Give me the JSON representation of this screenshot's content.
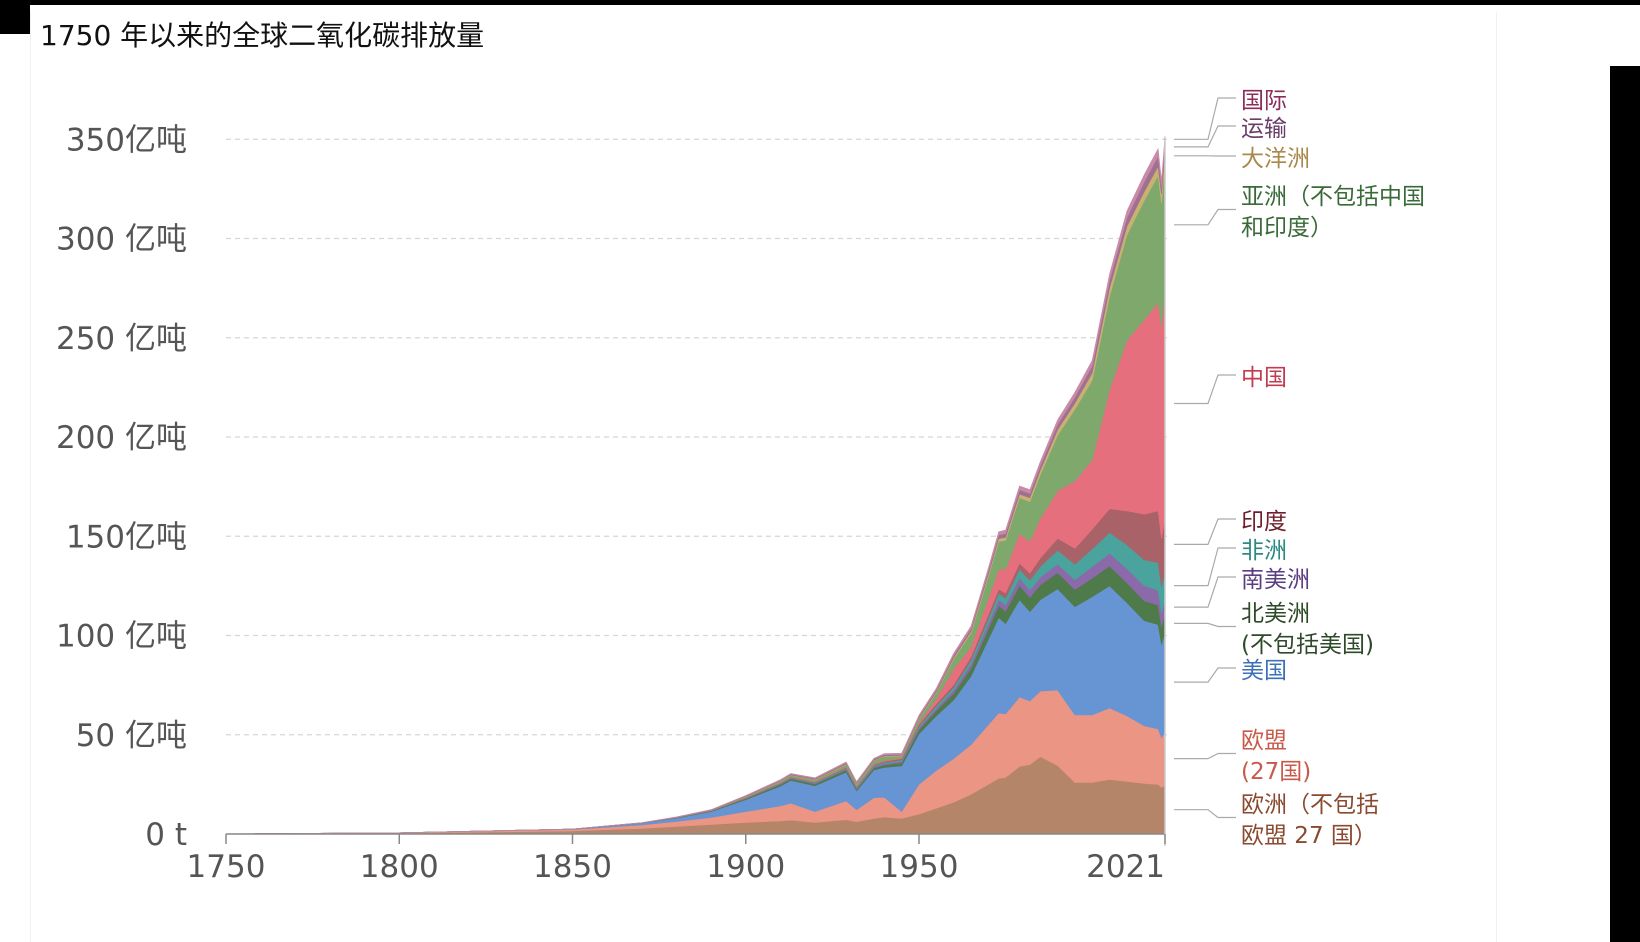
{
  "title": "1750 年以来的全球二氧化碳排放量",
  "colors": {
    "grid": "#d6d6d6",
    "axis": "#888888",
    "connector": "#aaaaaa",
    "tick_text": "#555555"
  },
  "chart_data": {
    "type": "area",
    "stacked": true,
    "title": "1750 年以来的全球二氧化碳排放量",
    "xlim": [
      1750,
      2021
    ],
    "ylim": [
      0,
      37
    ],
    "y_unit": "亿吨 (x10)",
    "x_ticks": [
      {
        "value": 1750,
        "label": "1750"
      },
      {
        "value": 1800,
        "label": "1800"
      },
      {
        "value": 1850,
        "label": "1850"
      },
      {
        "value": 1900,
        "label": "1900"
      },
      {
        "value": 1950,
        "label": "1950"
      },
      {
        "value": 2021,
        "label": "2021"
      }
    ],
    "y_ticks": [
      {
        "value": 0,
        "label": "0 t"
      },
      {
        "value": 5,
        "label": "50 亿吨"
      },
      {
        "value": 10,
        "label": "100 亿吨"
      },
      {
        "value": 15,
        "label": "150亿吨"
      },
      {
        "value": 20,
        "label": "200 亿吨"
      },
      {
        "value": 25,
        "label": "250 亿吨"
      },
      {
        "value": 30,
        "label": "300 亿吨"
      },
      {
        "value": 35,
        "label": "350亿吨"
      }
    ],
    "grid": "y-dashed",
    "legend": "right-inline",
    "x": [
      1750,
      1800,
      1850,
      1870,
      1880,
      1890,
      1900,
      1910,
      1913,
      1920,
      1929,
      1932,
      1937,
      1940,
      1945,
      1950,
      1955,
      1960,
      1965,
      1970,
      1973,
      1975,
      1979,
      1982,
      1985,
      1990,
      1995,
      2000,
      2005,
      2010,
      2015,
      2019,
      2020,
      2021
    ],
    "series": [
      {
        "name": "欧洲（不包括欧盟 27 国）",
        "label_lines": [
          "欧洲（不包括",
          "欧盟 27 国）"
        ],
        "color": "#b5856a",
        "text_color": "#8a4a30",
        "values": [
          0.01,
          0.04,
          0.15,
          0.28,
          0.38,
          0.48,
          0.58,
          0.66,
          0.7,
          0.58,
          0.72,
          0.62,
          0.78,
          0.85,
          0.78,
          1.0,
          1.3,
          1.6,
          2.0,
          2.5,
          2.8,
          2.85,
          3.4,
          3.5,
          3.9,
          3.45,
          2.6,
          2.6,
          2.75,
          2.65,
          2.55,
          2.5,
          2.35,
          2.45
        ]
      },
      {
        "name": "欧盟(27国)",
        "label_lines": [
          "欧盟",
          "(27国)"
        ],
        "color": "#eb9584",
        "text_color": "#c85a4a",
        "values": [
          0.0,
          0.02,
          0.08,
          0.18,
          0.25,
          0.35,
          0.55,
          0.75,
          0.85,
          0.55,
          0.95,
          0.6,
          1.05,
          1.0,
          0.35,
          1.5,
          1.9,
          2.2,
          2.5,
          3.0,
          3.3,
          3.2,
          3.5,
          3.2,
          3.3,
          3.8,
          3.4,
          3.4,
          3.6,
          3.3,
          2.9,
          2.8,
          2.5,
          2.7
        ]
      },
      {
        "name": "美国",
        "label_lines": [
          "美国"
        ],
        "color": "#6794d2",
        "text_color": "#3e70b8",
        "values": [
          0.0,
          0.0,
          0.02,
          0.09,
          0.17,
          0.3,
          0.6,
          1.0,
          1.15,
          1.3,
          1.45,
          0.95,
          1.4,
          1.5,
          2.3,
          2.55,
          2.75,
          2.95,
          3.45,
          4.3,
          4.8,
          4.55,
          4.9,
          4.5,
          4.6,
          5.1,
          5.45,
          5.95,
          6.15,
          5.7,
          5.3,
          5.25,
          4.7,
          5.0
        ]
      },
      {
        "name": "北美洲(不包括美国)",
        "label_lines": [
          "北美洲",
          "(不包括美国)"
        ],
        "color": "#4f7a4a",
        "text_color": "#2e4a28",
        "values": [
          0.0,
          0.0,
          0.0,
          0.01,
          0.02,
          0.03,
          0.05,
          0.08,
          0.08,
          0.09,
          0.1,
          0.08,
          0.1,
          0.12,
          0.15,
          0.2,
          0.26,
          0.32,
          0.4,
          0.52,
          0.6,
          0.62,
          0.72,
          0.72,
          0.75,
          0.82,
          0.86,
          0.94,
          1.0,
          1.0,
          1.0,
          0.98,
          0.9,
          0.92
        ]
      },
      {
        "name": "南美洲",
        "label_lines": [
          "南美洲"
        ],
        "color": "#8a6aa8",
        "text_color": "#5a3d82",
        "values": [
          0.0,
          0.0,
          0.0,
          0.0,
          0.0,
          0.01,
          0.02,
          0.03,
          0.03,
          0.04,
          0.05,
          0.05,
          0.06,
          0.07,
          0.08,
          0.1,
          0.13,
          0.17,
          0.21,
          0.26,
          0.3,
          0.32,
          0.37,
          0.37,
          0.38,
          0.42,
          0.5,
          0.58,
          0.64,
          0.72,
          0.76,
          0.74,
          0.68,
          0.72
        ]
      },
      {
        "name": "非洲",
        "label_lines": [
          "非洲"
        ],
        "color": "#4aa39c",
        "text_color": "#2c8a82",
        "values": [
          0.0,
          0.0,
          0.0,
          0.0,
          0.0,
          0.0,
          0.01,
          0.02,
          0.02,
          0.03,
          0.04,
          0.04,
          0.05,
          0.06,
          0.07,
          0.09,
          0.12,
          0.15,
          0.2,
          0.27,
          0.32,
          0.35,
          0.45,
          0.5,
          0.55,
          0.7,
          0.78,
          0.9,
          1.05,
          1.2,
          1.3,
          1.4,
          1.35,
          1.45
        ]
      },
      {
        "name": "印度",
        "label_lines": [
          "印度"
        ],
        "color": "#a86268",
        "text_color": "#6e1f2c",
        "values": [
          0.0,
          0.0,
          0.0,
          0.0,
          0.01,
          0.01,
          0.02,
          0.03,
          0.03,
          0.03,
          0.04,
          0.04,
          0.05,
          0.06,
          0.07,
          0.08,
          0.1,
          0.12,
          0.16,
          0.2,
          0.22,
          0.25,
          0.3,
          0.35,
          0.42,
          0.6,
          0.8,
          0.98,
          1.2,
          1.7,
          2.3,
          2.6,
          2.4,
          2.7
        ]
      },
      {
        "name": "中国",
        "label_lines": [
          "中国"
        ],
        "color": "#e66f7e",
        "text_color": "#c23b4f",
        "values": [
          0.0,
          0.0,
          0.0,
          0.0,
          0.0,
          0.0,
          0.01,
          0.02,
          0.02,
          0.02,
          0.03,
          0.03,
          0.04,
          0.05,
          0.05,
          0.08,
          0.25,
          0.8,
          0.5,
          0.8,
          1.0,
          1.2,
          1.5,
          1.6,
          2.0,
          2.4,
          3.4,
          3.5,
          6.0,
          8.6,
          9.8,
          10.5,
          10.7,
          11.5
        ]
      },
      {
        "name": "亚洲（不包括中国和印度）",
        "label_lines": [
          "亚洲（不包括中国",
          "和印度）"
        ],
        "color": "#7ea86c",
        "text_color": "#3a6a38",
        "values": [
          0.0,
          0.0,
          0.0,
          0.0,
          0.01,
          0.02,
          0.04,
          0.07,
          0.08,
          0.09,
          0.13,
          0.12,
          0.17,
          0.2,
          0.08,
          0.2,
          0.3,
          0.5,
          0.7,
          1.1,
          1.4,
          1.45,
          1.8,
          2.0,
          2.2,
          2.8,
          3.6,
          4.0,
          4.7,
          5.3,
          6.0,
          6.4,
          6.2,
          6.5
        ]
      },
      {
        "name": "大洋洲",
        "label_lines": [
          "大洋洲"
        ],
        "color": "#c9b271",
        "text_color": "#a8894a",
        "values": [
          0.0,
          0.0,
          0.0,
          0.0,
          0.0,
          0.0,
          0.01,
          0.01,
          0.01,
          0.02,
          0.02,
          0.02,
          0.02,
          0.03,
          0.03,
          0.04,
          0.05,
          0.07,
          0.09,
          0.12,
          0.14,
          0.15,
          0.18,
          0.2,
          0.22,
          0.28,
          0.32,
          0.38,
          0.42,
          0.44,
          0.45,
          0.46,
          0.45,
          0.45
        ]
      },
      {
        "name": "运输",
        "label_lines": [
          "运输"
        ],
        "color": "#a07090",
        "text_color": "#6a3e6a",
        "values": [
          0.0,
          0.0,
          0.0,
          0.01,
          0.01,
          0.02,
          0.03,
          0.04,
          0.05,
          0.05,
          0.06,
          0.05,
          0.06,
          0.06,
          0.05,
          0.08,
          0.1,
          0.12,
          0.14,
          0.17,
          0.19,
          0.2,
          0.22,
          0.22,
          0.24,
          0.27,
          0.3,
          0.36,
          0.4,
          0.44,
          0.5,
          0.52,
          0.42,
          0.45
        ]
      },
      {
        "name": "国际",
        "label_lines": [
          "国际"
        ],
        "color": "#c88aa8",
        "text_color": "#8a2d5a",
        "values": [
          0.0,
          0.0,
          0.0,
          0.0,
          0.01,
          0.01,
          0.02,
          0.03,
          0.03,
          0.03,
          0.04,
          0.04,
          0.04,
          0.05,
          0.06,
          0.07,
          0.08,
          0.1,
          0.12,
          0.15,
          0.16,
          0.17,
          0.19,
          0.19,
          0.2,
          0.22,
          0.24,
          0.27,
          0.3,
          0.33,
          0.35,
          0.37,
          0.28,
          0.32
        ]
      }
    ]
  }
}
